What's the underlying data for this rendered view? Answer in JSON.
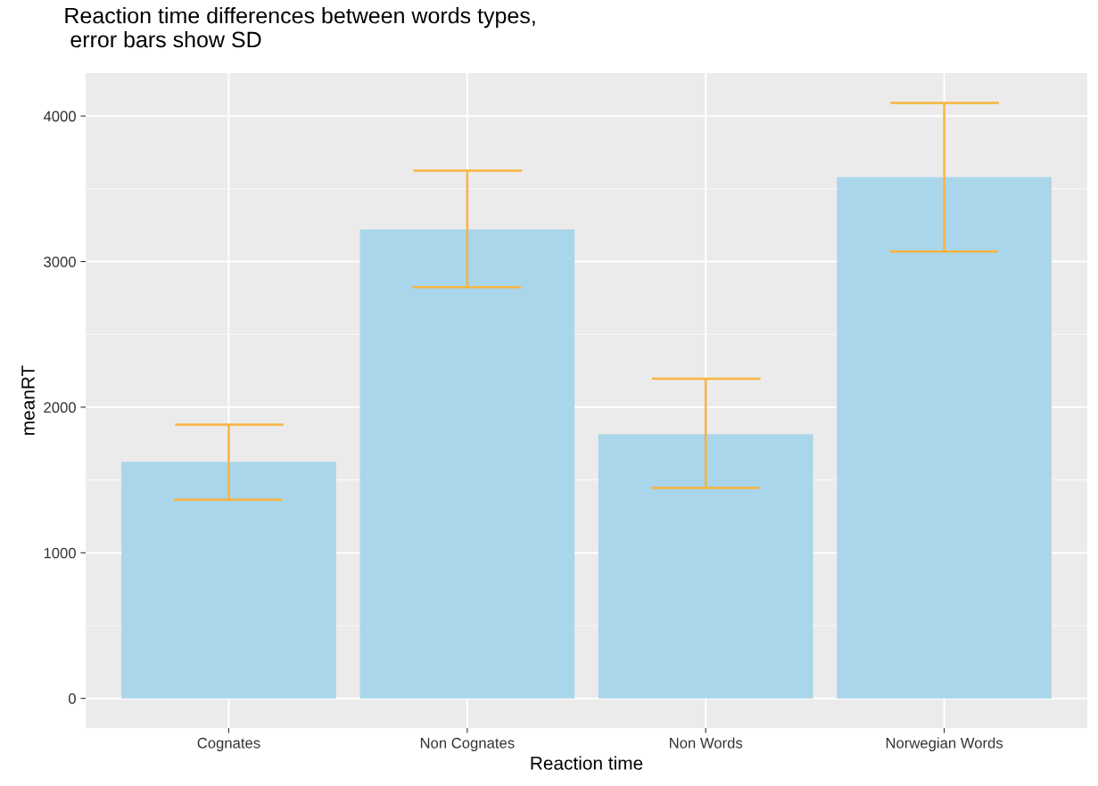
{
  "chart_data": {
    "type": "bar",
    "title": "Reaction time differences between words types,\n error bars show SD",
    "xlabel": "Reaction time",
    "ylabel": "meanRT",
    "categories": [
      "Cognates",
      "Non Cognates",
      "Non Words",
      "Norwegian Words"
    ],
    "color": "#a9d6ea",
    "values": [
      1625,
      3220,
      1815,
      3580
    ],
    "errors": [
      [
        1365,
        1880
      ],
      [
        2825,
        3625
      ],
      [
        1445,
        2195
      ],
      [
        3070,
        4090
      ]
    ],
    "ylim": [
      -204,
      4295
    ],
    "yticks": [
      0,
      1000,
      2000,
      3000,
      4000
    ],
    "grid": true
  }
}
